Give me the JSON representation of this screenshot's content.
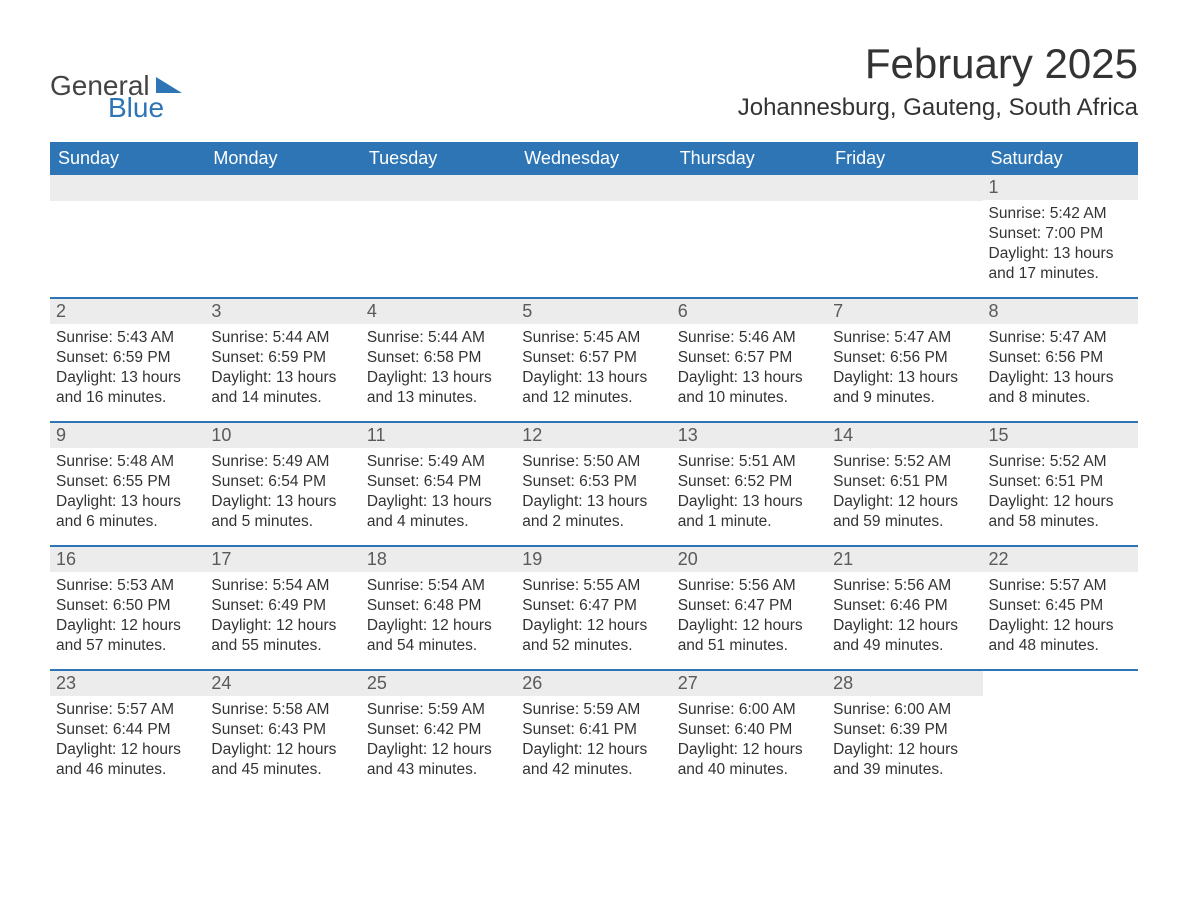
{
  "brand": {
    "word1": "General",
    "word2": "Blue",
    "word1_color": "#444444",
    "word2_color": "#2e75b6",
    "mark_color": "#2e75b6"
  },
  "title": {
    "month_year": "February 2025",
    "location": "Johannesburg, Gauteng, South Africa"
  },
  "colors": {
    "header_bg": "#2e75b6",
    "header_text": "#ffffff",
    "band_bg": "#ececec",
    "rule": "#2e75b6",
    "body_text": "#333333",
    "page_bg": "#ffffff"
  },
  "daynames": [
    "Sunday",
    "Monday",
    "Tuesday",
    "Wednesday",
    "Thursday",
    "Friday",
    "Saturday"
  ],
  "labels": {
    "sunrise": "Sunrise:",
    "sunset": "Sunset:",
    "daylight": "Daylight:"
  },
  "weeks": [
    [
      null,
      null,
      null,
      null,
      null,
      null,
      {
        "n": "1",
        "sunrise": "5:42 AM",
        "sunset": "7:00 PM",
        "daylight": "13 hours and 17 minutes."
      }
    ],
    [
      {
        "n": "2",
        "sunrise": "5:43 AM",
        "sunset": "6:59 PM",
        "daylight": "13 hours and 16 minutes."
      },
      {
        "n": "3",
        "sunrise": "5:44 AM",
        "sunset": "6:59 PM",
        "daylight": "13 hours and 14 minutes."
      },
      {
        "n": "4",
        "sunrise": "5:44 AM",
        "sunset": "6:58 PM",
        "daylight": "13 hours and 13 minutes."
      },
      {
        "n": "5",
        "sunrise": "5:45 AM",
        "sunset": "6:57 PM",
        "daylight": "13 hours and 12 minutes."
      },
      {
        "n": "6",
        "sunrise": "5:46 AM",
        "sunset": "6:57 PM",
        "daylight": "13 hours and 10 minutes."
      },
      {
        "n": "7",
        "sunrise": "5:47 AM",
        "sunset": "6:56 PM",
        "daylight": "13 hours and 9 minutes."
      },
      {
        "n": "8",
        "sunrise": "5:47 AM",
        "sunset": "6:56 PM",
        "daylight": "13 hours and 8 minutes."
      }
    ],
    [
      {
        "n": "9",
        "sunrise": "5:48 AM",
        "sunset": "6:55 PM",
        "daylight": "13 hours and 6 minutes."
      },
      {
        "n": "10",
        "sunrise": "5:49 AM",
        "sunset": "6:54 PM",
        "daylight": "13 hours and 5 minutes."
      },
      {
        "n": "11",
        "sunrise": "5:49 AM",
        "sunset": "6:54 PM",
        "daylight": "13 hours and 4 minutes."
      },
      {
        "n": "12",
        "sunrise": "5:50 AM",
        "sunset": "6:53 PM",
        "daylight": "13 hours and 2 minutes."
      },
      {
        "n": "13",
        "sunrise": "5:51 AM",
        "sunset": "6:52 PM",
        "daylight": "13 hours and 1 minute."
      },
      {
        "n": "14",
        "sunrise": "5:52 AM",
        "sunset": "6:51 PM",
        "daylight": "12 hours and 59 minutes."
      },
      {
        "n": "15",
        "sunrise": "5:52 AM",
        "sunset": "6:51 PM",
        "daylight": "12 hours and 58 minutes."
      }
    ],
    [
      {
        "n": "16",
        "sunrise": "5:53 AM",
        "sunset": "6:50 PM",
        "daylight": "12 hours and 57 minutes."
      },
      {
        "n": "17",
        "sunrise": "5:54 AM",
        "sunset": "6:49 PM",
        "daylight": "12 hours and 55 minutes."
      },
      {
        "n": "18",
        "sunrise": "5:54 AM",
        "sunset": "6:48 PM",
        "daylight": "12 hours and 54 minutes."
      },
      {
        "n": "19",
        "sunrise": "5:55 AM",
        "sunset": "6:47 PM",
        "daylight": "12 hours and 52 minutes."
      },
      {
        "n": "20",
        "sunrise": "5:56 AM",
        "sunset": "6:47 PM",
        "daylight": "12 hours and 51 minutes."
      },
      {
        "n": "21",
        "sunrise": "5:56 AM",
        "sunset": "6:46 PM",
        "daylight": "12 hours and 49 minutes."
      },
      {
        "n": "22",
        "sunrise": "5:57 AM",
        "sunset": "6:45 PM",
        "daylight": "12 hours and 48 minutes."
      }
    ],
    [
      {
        "n": "23",
        "sunrise": "5:57 AM",
        "sunset": "6:44 PM",
        "daylight": "12 hours and 46 minutes."
      },
      {
        "n": "24",
        "sunrise": "5:58 AM",
        "sunset": "6:43 PM",
        "daylight": "12 hours and 45 minutes."
      },
      {
        "n": "25",
        "sunrise": "5:59 AM",
        "sunset": "6:42 PM",
        "daylight": "12 hours and 43 minutes."
      },
      {
        "n": "26",
        "sunrise": "5:59 AM",
        "sunset": "6:41 PM",
        "daylight": "12 hours and 42 minutes."
      },
      {
        "n": "27",
        "sunrise": "6:00 AM",
        "sunset": "6:40 PM",
        "daylight": "12 hours and 40 minutes."
      },
      {
        "n": "28",
        "sunrise": "6:00 AM",
        "sunset": "6:39 PM",
        "daylight": "12 hours and 39 minutes."
      },
      null
    ]
  ]
}
